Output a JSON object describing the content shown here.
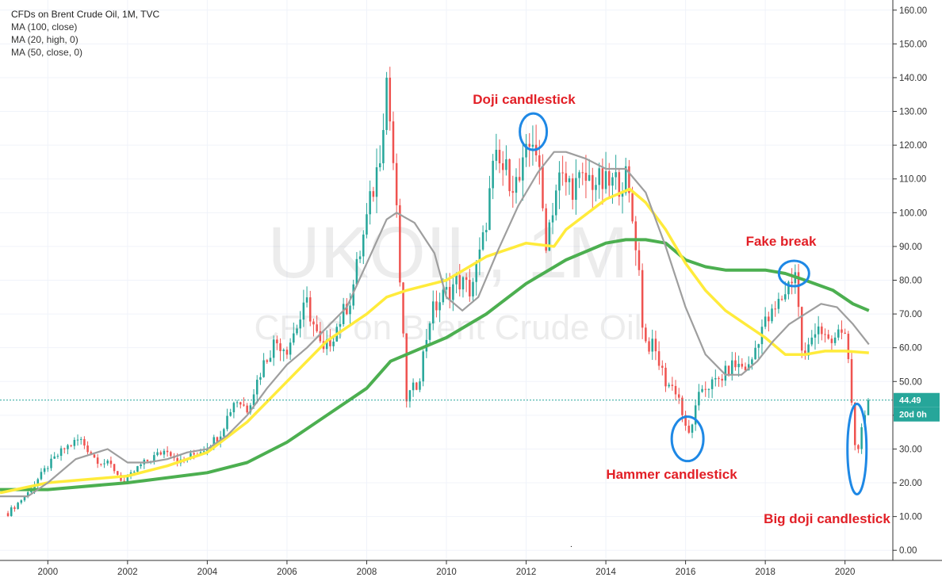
{
  "header": {
    "symbol_line": "CFDs on Brent Crude Oil, 1M, TVC",
    "indicators": [
      "MA (100, close)",
      "MA (20, high, 0)",
      "MA (50, close, 0)"
    ]
  },
  "watermark": {
    "symbol": "UKOIL, 1M",
    "description": "CFDs on Brent Crude Oil"
  },
  "price_badge": {
    "value": "44.49",
    "countdown": "20d 0h"
  },
  "annotations": [
    {
      "text": "Doji candlestick",
      "x": 2012.05,
      "y": 128
    },
    {
      "text": "Fake break",
      "x": 2018.75,
      "y": 83
    },
    {
      "text": "Hammer candlestick",
      "x": 2016.1,
      "y": 32
    },
    {
      "text": "Big doji candlestick",
      "x": 2020.35,
      "y": 26
    }
  ],
  "colors": {
    "up": "#26a69a",
    "down": "#ef5350",
    "ma100": "#4caf50",
    "ma20": "#9e9e9e",
    "ma50": "#ffeb3b",
    "annotation_text": "#e21f26",
    "highlight_circle": "#1e88e5",
    "price_line": "#26a69a"
  },
  "chart_data": {
    "type": "candlestick",
    "title": "CFDs on Brent Crude Oil, 1M, TVC",
    "x_ticks": [
      "2000",
      "2002",
      "2004",
      "2006",
      "2008",
      "2010",
      "2012",
      "2014",
      "2016",
      "2018",
      "2020"
    ],
    "y_ticks": [
      "0.00",
      "10.00",
      "20.00",
      "30.00",
      "40.00",
      "50.00",
      "60.00",
      "70.00",
      "80.00",
      "90.00",
      "100.00",
      "110.00",
      "120.00",
      "130.00",
      "140.00",
      "150.00",
      "160.00"
    ],
    "ylim": [
      -3,
      163
    ],
    "xlim": [
      1998.8,
      2021.2
    ],
    "last_price": 44.49,
    "close_path": [
      [
        1999.0,
        11
      ],
      [
        1999.5,
        17
      ],
      [
        2000.0,
        25
      ],
      [
        2000.4,
        30
      ],
      [
        2000.8,
        33
      ],
      [
        2001.2,
        27
      ],
      [
        2001.6,
        25
      ],
      [
        2001.9,
        20
      ],
      [
        2002.3,
        25
      ],
      [
        2002.7,
        28
      ],
      [
        2003.0,
        30
      ],
      [
        2003.3,
        26
      ],
      [
        2003.6,
        28
      ],
      [
        2003.9,
        30
      ],
      [
        2004.3,
        34
      ],
      [
        2004.7,
        45
      ],
      [
        2005.0,
        42
      ],
      [
        2005.4,
        55
      ],
      [
        2005.7,
        62
      ],
      [
        2006.0,
        60
      ],
      [
        2006.5,
        73
      ],
      [
        2006.9,
        58
      ],
      [
        2007.2,
        65
      ],
      [
        2007.6,
        75
      ],
      [
        2007.9,
        92
      ],
      [
        2008.3,
        115
      ],
      [
        2008.5,
        140
      ],
      [
        2008.7,
        110
      ],
      [
        2008.9,
        65
      ],
      [
        2009.0,
        45
      ],
      [
        2009.3,
        50
      ],
      [
        2009.6,
        70
      ],
      [
        2009.9,
        75
      ],
      [
        2010.3,
        80
      ],
      [
        2010.6,
        77
      ],
      [
        2010.9,
        90
      ],
      [
        2011.2,
        115
      ],
      [
        2011.5,
        112
      ],
      [
        2011.8,
        108
      ],
      [
        2012.2,
        124
      ],
      [
        2012.5,
        92
      ],
      [
        2012.8,
        110
      ],
      [
        2013.2,
        108
      ],
      [
        2013.6,
        110
      ],
      [
        2014.0,
        108
      ],
      [
        2014.5,
        110
      ],
      [
        2014.8,
        88
      ],
      [
        2014.95,
        62
      ],
      [
        2015.2,
        60
      ],
      [
        2015.5,
        50
      ],
      [
        2015.8,
        47
      ],
      [
        2016.05,
        33
      ],
      [
        2016.4,
        48
      ],
      [
        2016.8,
        50
      ],
      [
        2017.2,
        55
      ],
      [
        2017.6,
        54
      ],
      [
        2017.9,
        66
      ],
      [
        2018.2,
        70
      ],
      [
        2018.55,
        78
      ],
      [
        2018.75,
        83
      ],
      [
        2018.95,
        55
      ],
      [
        2019.3,
        68
      ],
      [
        2019.6,
        60
      ],
      [
        2019.95,
        66
      ],
      [
        2020.1,
        58
      ],
      [
        2020.2,
        34
      ],
      [
        2020.3,
        26
      ],
      [
        2020.45,
        40
      ],
      [
        2020.65,
        44.49
      ]
    ],
    "series": [
      {
        "name": "MA (100, close)",
        "color": "#4caf50",
        "points": [
          [
            1998.8,
            18
          ],
          [
            2000,
            18
          ],
          [
            2002,
            20
          ],
          [
            2004,
            23
          ],
          [
            2005,
            26
          ],
          [
            2006,
            32
          ],
          [
            2007,
            40
          ],
          [
            2008,
            48
          ],
          [
            2008.6,
            56
          ],
          [
            2009,
            58
          ],
          [
            2010,
            63
          ],
          [
            2011,
            70
          ],
          [
            2012,
            79
          ],
          [
            2013,
            86
          ],
          [
            2014,
            91
          ],
          [
            2014.5,
            92
          ],
          [
            2015,
            92
          ],
          [
            2015.5,
            91
          ],
          [
            2016,
            86
          ],
          [
            2016.5,
            84
          ],
          [
            2017,
            83
          ],
          [
            2018,
            83
          ],
          [
            2018.5,
            82
          ],
          [
            2019,
            80
          ],
          [
            2019.7,
            77
          ],
          [
            2020.2,
            73
          ],
          [
            2020.6,
            71
          ]
        ]
      },
      {
        "name": "MA (50, close, 0)",
        "color": "#ffeb3b",
        "points": [
          [
            1998.8,
            17
          ],
          [
            2000,
            20
          ],
          [
            2001,
            21
          ],
          [
            2002,
            22
          ],
          [
            2003,
            25
          ],
          [
            2004,
            29
          ],
          [
            2005,
            38
          ],
          [
            2006,
            50
          ],
          [
            2007,
            62
          ],
          [
            2008,
            70
          ],
          [
            2008.5,
            75
          ],
          [
            2009,
            77
          ],
          [
            2010,
            80
          ],
          [
            2011,
            87
          ],
          [
            2012,
            91
          ],
          [
            2012.7,
            90
          ],
          [
            2013,
            95
          ],
          [
            2014,
            104
          ],
          [
            2014.6,
            107
          ],
          [
            2015,
            103
          ],
          [
            2015.5,
            95
          ],
          [
            2016,
            85
          ],
          [
            2016.5,
            77
          ],
          [
            2017,
            71
          ],
          [
            2017.5,
            67
          ],
          [
            2018,
            63
          ],
          [
            2018.5,
            58
          ],
          [
            2019,
            58
          ],
          [
            2019.5,
            59
          ],
          [
            2020,
            59
          ],
          [
            2020.6,
            58.5
          ]
        ]
      },
      {
        "name": "MA (20, high, 0)",
        "color": "#9e9e9e",
        "points": [
          [
            1998.8,
            16
          ],
          [
            1999.5,
            16
          ],
          [
            2000,
            20
          ],
          [
            2000.7,
            27
          ],
          [
            2001.5,
            30
          ],
          [
            2002,
            26
          ],
          [
            2002.5,
            26
          ],
          [
            2003,
            27
          ],
          [
            2003.5,
            29
          ],
          [
            2004,
            30
          ],
          [
            2004.5,
            34
          ],
          [
            2005,
            40
          ],
          [
            2005.5,
            48
          ],
          [
            2006,
            55
          ],
          [
            2006.5,
            60
          ],
          [
            2007,
            66
          ],
          [
            2007.5,
            72
          ],
          [
            2008,
            85
          ],
          [
            2008.5,
            98
          ],
          [
            2008.75,
            100
          ],
          [
            2009.2,
            97
          ],
          [
            2009.7,
            88
          ],
          [
            2010,
            75
          ],
          [
            2010.4,
            71
          ],
          [
            2010.8,
            75
          ],
          [
            2011.3,
            89
          ],
          [
            2011.8,
            102
          ],
          [
            2012.3,
            112
          ],
          [
            2012.7,
            118
          ],
          [
            2013,
            118
          ],
          [
            2013.5,
            116
          ],
          [
            2014,
            113
          ],
          [
            2014.5,
            113
          ],
          [
            2015,
            106
          ],
          [
            2015.5,
            90
          ],
          [
            2016,
            72
          ],
          [
            2016.5,
            58
          ],
          [
            2017,
            52
          ],
          [
            2017.4,
            52
          ],
          [
            2017.8,
            56
          ],
          [
            2018.2,
            62
          ],
          [
            2018.6,
            67
          ],
          [
            2019,
            70
          ],
          [
            2019.4,
            73
          ],
          [
            2019.8,
            72
          ],
          [
            2020.2,
            67
          ],
          [
            2020.6,
            61
          ]
        ]
      }
    ]
  }
}
